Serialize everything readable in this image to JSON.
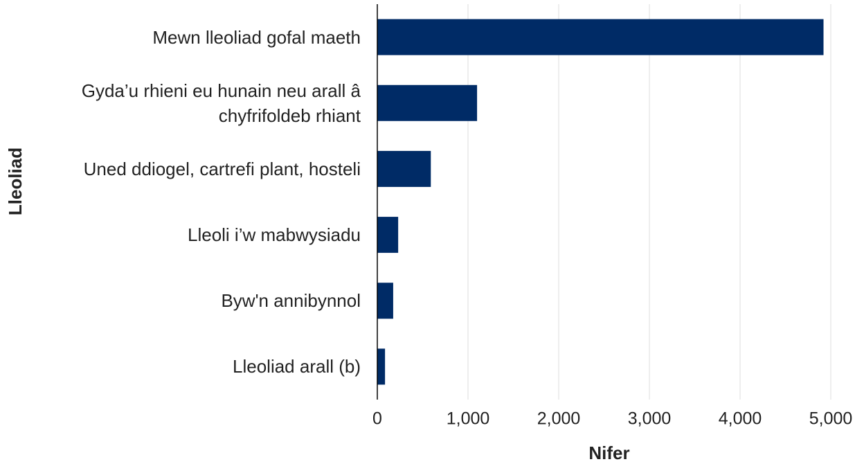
{
  "chart_data": {
    "type": "bar",
    "orientation": "horizontal",
    "x_label": "Nifer",
    "y_label": "Lleoliad",
    "categories": [
      "Mewn lleoliad gofal maeth",
      "Gyda’u rhieni eu hunain neu arall â chyfrifoldeb rhiant",
      "Uned ddiogel, cartrefi plant, hosteli",
      "Lleoli i’w mabwysiadu",
      "Byw'n annibynnol",
      "Lleoliad arall (b)"
    ],
    "values": [
      4920,
      1100,
      590,
      230,
      175,
      85
    ],
    "color": "#002b66",
    "xlim": [
      0,
      5000
    ],
    "xticks": [
      0,
      {
        "value": 1000,
        "label": "1,000"
      },
      {
        "value": 2000,
        "label": "2,000"
      },
      {
        "value": 3000,
        "label": "3,000"
      },
      {
        "value": 4000,
        "label": "4,000"
      },
      {
        "value": 5000,
        "label": "5,000"
      }
    ],
    "grid": true
  }
}
